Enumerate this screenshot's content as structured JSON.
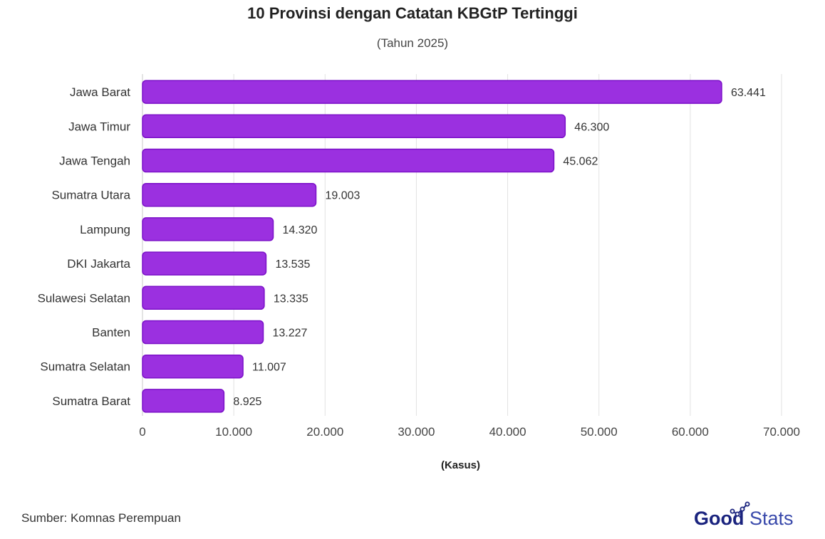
{
  "chart_data": {
    "type": "bar",
    "orientation": "horizontal",
    "title": "10 Provinsi dengan Catatan KBGtP Tertinggi",
    "subtitle": "(Tahun 2025)",
    "xlabel": "(Kasus)",
    "xlim": [
      0,
      70000
    ],
    "xticks": [
      0,
      10000,
      20000,
      30000,
      40000,
      50000,
      60000,
      70000
    ],
    "xtick_labels": [
      "0",
      "10.000",
      "20.000",
      "30.000",
      "40.000",
      "50.000",
      "60.000",
      "70.000"
    ],
    "categories": [
      "Jawa Barat",
      "Jawa Timur",
      "Jawa Tengah",
      "Sumatra Utara",
      "Lampung",
      "DKI Jakarta",
      "Sulawesi Selatan",
      "Banten",
      "Sumatra Selatan",
      "Sumatra Barat"
    ],
    "values": [
      63441,
      46300,
      45062,
      19003,
      14320,
      13535,
      13335,
      13227,
      11007,
      8925
    ],
    "value_labels": [
      "63.441",
      "46.300",
      "45.062",
      "19.003",
      "14.320",
      "13.535",
      "13.335",
      "13.227",
      "11.007",
      "8.925"
    ],
    "grid": true,
    "legend": "none",
    "bar_color": "#9b30e0",
    "bar_border_color": "#7b10c8"
  },
  "footer": {
    "source": "Sumber: Komnas Perempuan"
  },
  "logo": {
    "part1": "Good",
    "part2": "Stats",
    "color1": "#1a237e",
    "color2": "#3949ab"
  }
}
